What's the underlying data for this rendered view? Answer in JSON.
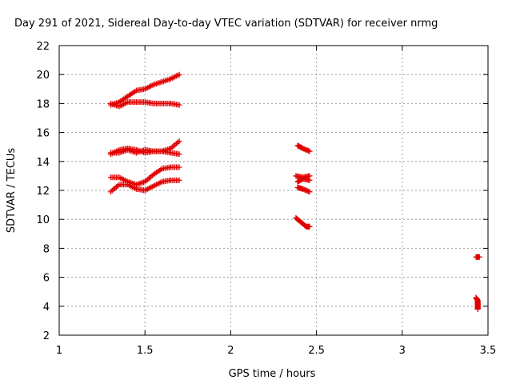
{
  "chart_data": {
    "type": "scatter",
    "title": "Day 291 of 2021, Sidereal Day-to-day VTEC variation (SDTVAR) for receiver nrmg",
    "xlabel": "GPS time / hours",
    "ylabel": "SDTVAR / TECUs",
    "xlim": [
      1,
      3.5
    ],
    "ylim": [
      2,
      22
    ],
    "xticks": [
      "1",
      "1.5",
      "2",
      "2.5",
      "3",
      "3.5"
    ],
    "yticks": [
      "2",
      "4",
      "6",
      "8",
      "10",
      "12",
      "14",
      "16",
      "18",
      "20",
      "22"
    ],
    "grid": true,
    "marker": "plus",
    "color": "#e00000",
    "tracks": [
      {
        "x": [
          1.3,
          1.35,
          1.4,
          1.45,
          1.5,
          1.55,
          1.6,
          1.65,
          1.7
        ],
        "y": [
          17.9,
          18.1,
          18.5,
          18.9,
          19.0,
          19.3,
          19.5,
          19.7,
          20.0
        ]
      },
      {
        "x": [
          1.3,
          1.35,
          1.4,
          1.45,
          1.5,
          1.55,
          1.6,
          1.65,
          1.7
        ],
        "y": [
          18.0,
          17.8,
          18.1,
          18.1,
          18.1,
          18.0,
          18.0,
          18.0,
          17.9
        ]
      },
      {
        "x": [
          1.3,
          1.35,
          1.4,
          1.45,
          1.5,
          1.55,
          1.6,
          1.65,
          1.7
        ],
        "y": [
          14.5,
          14.8,
          14.9,
          14.8,
          14.6,
          14.7,
          14.7,
          14.9,
          15.4
        ]
      },
      {
        "x": [
          1.3,
          1.35,
          1.4,
          1.45,
          1.5,
          1.55,
          1.6,
          1.65,
          1.7
        ],
        "y": [
          14.6,
          14.6,
          14.8,
          14.6,
          14.8,
          14.7,
          14.7,
          14.6,
          14.5
        ]
      },
      {
        "x": [
          1.3,
          1.35,
          1.4,
          1.45,
          1.5,
          1.55,
          1.6,
          1.65,
          1.7
        ],
        "y": [
          12.9,
          12.9,
          12.6,
          12.4,
          12.6,
          13.1,
          13.5,
          13.6,
          13.6
        ]
      },
      {
        "x": [
          1.3,
          1.35,
          1.4,
          1.45,
          1.5,
          1.55,
          1.6,
          1.65,
          1.7
        ],
        "y": [
          11.9,
          12.4,
          12.4,
          12.1,
          12.0,
          12.3,
          12.6,
          12.7,
          12.7
        ]
      },
      {
        "x": [
          2.39,
          2.42,
          2.46
        ],
        "y": [
          15.1,
          14.9,
          14.7
        ]
      },
      {
        "x": [
          2.38,
          2.42,
          2.46
        ],
        "y": [
          13.0,
          12.9,
          13.0
        ]
      },
      {
        "x": [
          2.39,
          2.42,
          2.46
        ],
        "y": [
          12.6,
          12.8,
          12.7
        ]
      },
      {
        "x": [
          2.39,
          2.42,
          2.46
        ],
        "y": [
          12.2,
          12.1,
          11.9
        ]
      },
      {
        "x": [
          2.38,
          2.41,
          2.44,
          2.46
        ],
        "y": [
          10.1,
          9.8,
          9.5,
          9.5
        ]
      },
      {
        "x": [
          3.43,
          3.45
        ],
        "y": [
          7.4,
          7.4
        ]
      },
      {
        "x": [
          3.43,
          3.44,
          3.44,
          3.44,
          3.44,
          3.44
        ],
        "y": [
          4.6,
          4.4,
          4.2,
          4.1,
          3.9,
          3.8
        ]
      }
    ]
  }
}
